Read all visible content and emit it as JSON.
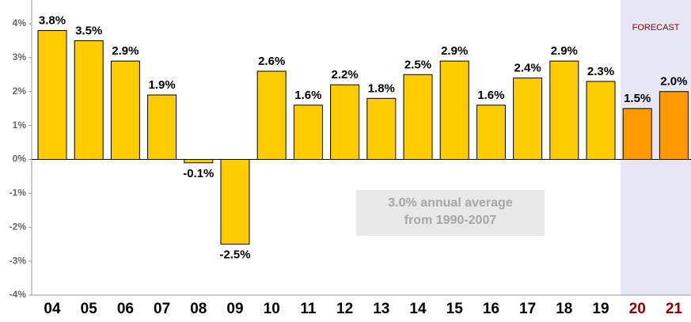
{
  "chart_data": {
    "type": "bar",
    "categories": [
      "04",
      "05",
      "06",
      "07",
      "08",
      "09",
      "10",
      "11",
      "12",
      "13",
      "14",
      "15",
      "16",
      "17",
      "18",
      "19",
      "20",
      "21"
    ],
    "values": [
      3.8,
      3.5,
      2.9,
      1.9,
      -0.1,
      -2.5,
      2.6,
      1.6,
      2.2,
      1.8,
      2.5,
      2.9,
      1.6,
      2.4,
      2.9,
      2.3,
      1.5,
      2.0
    ],
    "value_labels": [
      "3.8%",
      "3.5%",
      "2.9%",
      "1.9%",
      "-0.1%",
      "-2.5%",
      "2.6%",
      "1.6%",
      "2.2%",
      "1.8%",
      "2.5%",
      "2.9%",
      "1.6%",
      "2.4%",
      "2.9%",
      "2.3%",
      "1.5%",
      "2.0%"
    ],
    "color": "#ffcc00",
    "colors": [
      "#ffcc00",
      "#ffcc00",
      "#ffcc00",
      "#ffcc00",
      "#ffcc00",
      "#ffcc00",
      "#ffcc00",
      "#ffcc00",
      "#ffcc00",
      "#ffcc00",
      "#ffcc00",
      "#ffcc00",
      "#ffcc00",
      "#ffcc00",
      "#ffcc00",
      "#ffcc00",
      "#ff9900",
      "#ff9900"
    ],
    "forecast_label": "FORECAST",
    "forecast_shade": "#e6e6f5",
    "forecast_text_color": "#8b0000",
    "annotation": [
      "3.0% annual average",
      "from 1990-2007"
    ],
    "ylim": [
      -4,
      4
    ],
    "yticks": [
      {
        "value": -4,
        "label": "-4%"
      },
      {
        "value": -3,
        "label": "-3%"
      },
      {
        "value": -2,
        "label": "-2%"
      },
      {
        "value": -1,
        "label": "-1%"
      },
      {
        "value": 0,
        "label": "0%"
      },
      {
        "value": 1,
        "label": "1%"
      },
      {
        "value": 2,
        "label": "2%"
      },
      {
        "value": 3,
        "label": "3%"
      },
      {
        "value": 4,
        "label": "4%"
      }
    ]
  }
}
